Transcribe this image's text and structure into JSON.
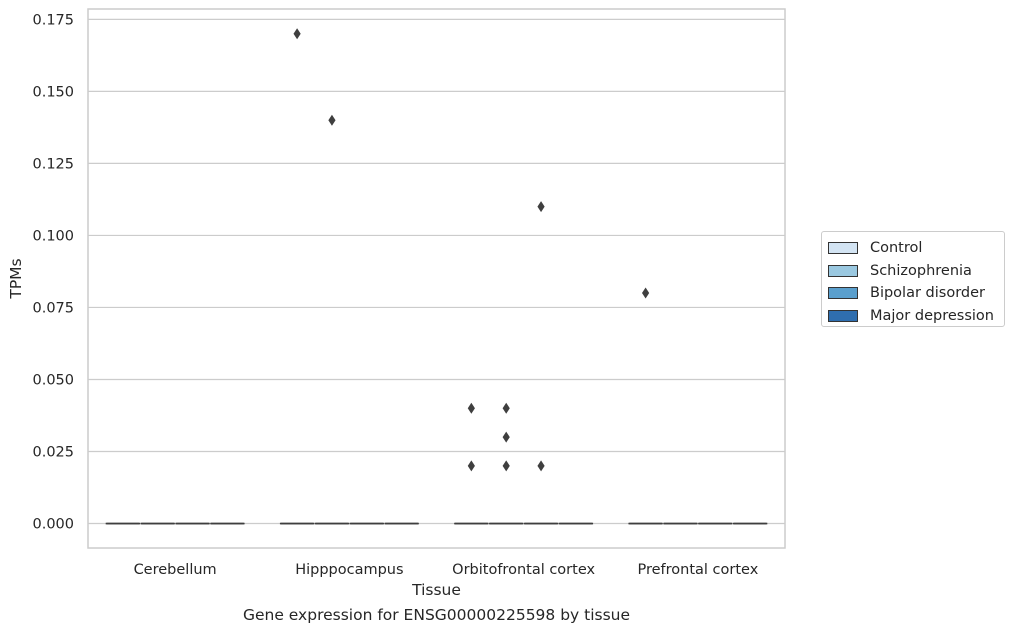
{
  "caption": "Gene expression for ENSG00000225598 by tissue",
  "chart_data": {
    "type": "box",
    "xlabel": "Tissue",
    "ylabel": "TPMs",
    "ylim": [
      -0.0085,
      0.1786
    ],
    "yticks": [
      0.0,
      0.025,
      0.05,
      0.075,
      0.1,
      0.125,
      0.15,
      0.175
    ],
    "ytick_labels": [
      "0.000",
      "0.025",
      "0.050",
      "0.075",
      "0.100",
      "0.125",
      "0.150",
      "0.175"
    ],
    "grid": "horizontal",
    "legend_placement": "outside-right",
    "categories": [
      "Cerebellum",
      "Hipppocampus",
      "Orbitofrontal cortex",
      "Prefrontal cortex"
    ],
    "series": [
      {
        "name": "Control",
        "color": "#d3e4f3",
        "boxes": [
          {
            "median": 0,
            "q1": 0,
            "q3": 0
          },
          {
            "median": 0,
            "q1": 0,
            "q3": 0
          },
          {
            "median": 0,
            "q1": 0,
            "q3": 0
          },
          {
            "median": 0,
            "q1": 0,
            "q3": 0
          }
        ],
        "outliers": [
          [],
          [
            0.17
          ],
          [
            0.02,
            0.04
          ],
          [
            0.08
          ]
        ]
      },
      {
        "name": "Schizophrenia",
        "color": "#9ac8e0",
        "boxes": [
          {
            "median": 0,
            "q1": 0,
            "q3": 0
          },
          {
            "median": 0,
            "q1": 0,
            "q3": 0
          },
          {
            "median": 0,
            "q1": 0,
            "q3": 0
          },
          {
            "median": 0,
            "q1": 0,
            "q3": 0
          }
        ],
        "outliers": [
          [],
          [
            0.14
          ],
          [
            0.02,
            0.03,
            0.04
          ],
          []
        ]
      },
      {
        "name": "Bipolar disorder",
        "color": "#5a9fcd",
        "boxes": [
          {
            "median": 0,
            "q1": 0,
            "q3": 0
          },
          {
            "median": 0,
            "q1": 0,
            "q3": 0
          },
          {
            "median": 0,
            "q1": 0,
            "q3": 0
          },
          {
            "median": 0,
            "q1": 0,
            "q3": 0
          }
        ],
        "outliers": [
          [],
          [],
          [
            0.02,
            0.11
          ],
          []
        ]
      },
      {
        "name": "Major depression",
        "color": "#2f6eaf",
        "boxes": [
          {
            "median": 0,
            "q1": 0,
            "q3": 0
          },
          {
            "median": 0,
            "q1": 0,
            "q3": 0
          },
          {
            "median": 0,
            "q1": 0,
            "q3": 0
          },
          {
            "median": 0,
            "q1": 0,
            "q3": 0
          }
        ],
        "outliers": [
          [],
          [],
          [],
          []
        ]
      }
    ]
  }
}
